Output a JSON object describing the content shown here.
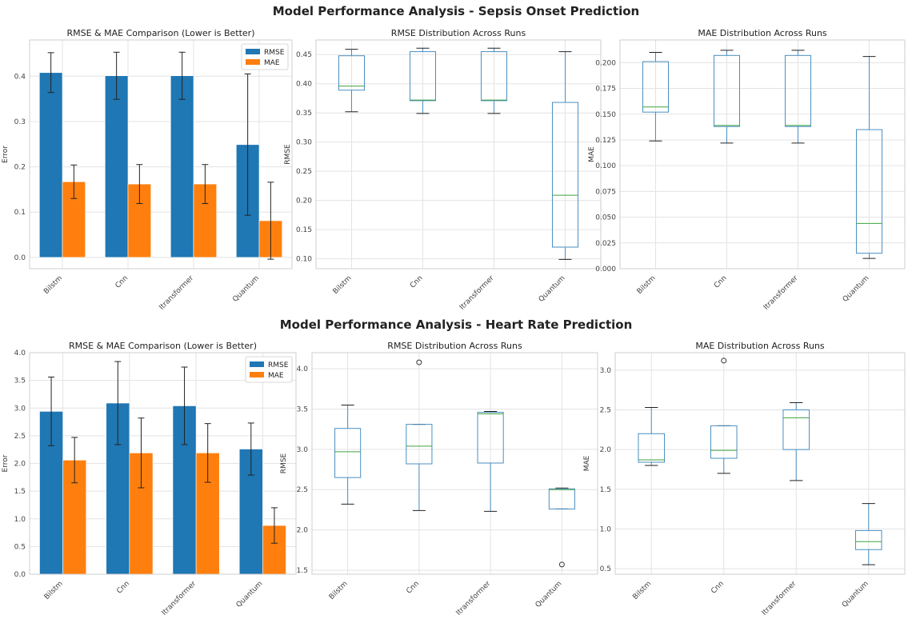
{
  "figure_titles": [
    "Model Performance Analysis - Sepsis Onset Prediction",
    "Model Performance Analysis - Heart Rate Prediction"
  ],
  "colors": {
    "rmse": "#1f77b4",
    "mae": "#ff7f0e",
    "box": "#4a8fc2",
    "median": "#3fa33f",
    "whisker": "#222222"
  },
  "chart_data": [
    {
      "type": "bar",
      "title": "RMSE & MAE Comparison (Lower is Better)",
      "ylabel": "Error",
      "categories": [
        "Bilstm",
        "Cnn",
        "Itransformer",
        "Quantum"
      ],
      "ylim": [
        -0.025,
        0.48
      ],
      "yticks": [
        0.0,
        0.1,
        0.2,
        0.3,
        0.4
      ],
      "yticklabels": [
        "0.0",
        "0.1",
        "0.2",
        "0.3",
        "0.4"
      ],
      "legend": "top-right",
      "grid": true,
      "series": [
        {
          "name": "RMSE",
          "color": "#1f77b4",
          "values": [
            0.408,
            0.401,
            0.401,
            0.249
          ],
          "err": [
            0.044,
            0.052,
            0.052,
            0.156
          ]
        },
        {
          "name": "MAE",
          "color": "#ff7f0e",
          "values": [
            0.167,
            0.162,
            0.162,
            0.081
          ],
          "err": [
            0.037,
            0.043,
            0.043,
            0.085
          ]
        }
      ]
    },
    {
      "type": "box",
      "title": "RMSE Distribution Across Runs",
      "ylabel": "RMSE",
      "categories": [
        "Bilstm",
        "Cnn",
        "Itransformer",
        "Quantum"
      ],
      "ylim": [
        0.083,
        0.475
      ],
      "yticks": [
        0.1,
        0.15,
        0.2,
        0.25,
        0.3,
        0.35,
        0.4,
        0.45
      ],
      "yticklabels": [
        "0.10",
        "0.15",
        "0.20",
        "0.25",
        "0.30",
        "0.35",
        "0.40",
        "0.45"
      ],
      "grid": true,
      "boxes": [
        {
          "min": 0.352,
          "q1": 0.389,
          "median": 0.396,
          "q3": 0.448,
          "max": 0.459,
          "outliers": []
        },
        {
          "min": 0.349,
          "q1": 0.371,
          "median": 0.372,
          "q3": 0.455,
          "max": 0.461,
          "outliers": []
        },
        {
          "min": 0.349,
          "q1": 0.371,
          "median": 0.372,
          "q3": 0.455,
          "max": 0.461,
          "outliers": []
        },
        {
          "min": 0.099,
          "q1": 0.12,
          "median": 0.209,
          "q3": 0.368,
          "max": 0.455,
          "outliers": []
        }
      ]
    },
    {
      "type": "box",
      "title": "MAE Distribution Across Runs",
      "ylabel": "MAE",
      "categories": [
        "Bilstm",
        "Cnn",
        "Itransformer",
        "Quantum"
      ],
      "ylim": [
        0.0,
        0.222
      ],
      "yticks": [
        0.0,
        0.025,
        0.05,
        0.075,
        0.1,
        0.125,
        0.15,
        0.175,
        0.2
      ],
      "yticklabels": [
        "0.000",
        "0.025",
        "0.050",
        "0.075",
        "0.100",
        "0.125",
        "0.150",
        "0.175",
        "0.200"
      ],
      "grid": true,
      "boxes": [
        {
          "min": 0.124,
          "q1": 0.152,
          "median": 0.157,
          "q3": 0.201,
          "max": 0.21,
          "outliers": []
        },
        {
          "min": 0.122,
          "q1": 0.138,
          "median": 0.139,
          "q3": 0.207,
          "max": 0.212,
          "outliers": []
        },
        {
          "min": 0.122,
          "q1": 0.138,
          "median": 0.139,
          "q3": 0.207,
          "max": 0.212,
          "outliers": []
        },
        {
          "min": 0.01,
          "q1": 0.015,
          "median": 0.044,
          "q3": 0.135,
          "max": 0.206,
          "outliers": []
        }
      ]
    },
    {
      "type": "bar",
      "title": "RMSE & MAE Comparison (Lower is Better)",
      "ylabel": "Error",
      "categories": [
        "Bilstm",
        "Cnn",
        "Itransformer",
        "Quantum"
      ],
      "ylim": [
        0.0,
        4.0
      ],
      "yticks": [
        0.0,
        0.5,
        1.0,
        1.5,
        2.0,
        2.5,
        3.0,
        3.5,
        4.0
      ],
      "yticklabels": [
        "0.0",
        "0.5",
        "1.0",
        "1.5",
        "2.0",
        "2.5",
        "3.0",
        "3.5",
        "4.0"
      ],
      "legend": "top-right",
      "grid": true,
      "series": [
        {
          "name": "RMSE",
          "color": "#1f77b4",
          "values": [
            2.94,
            3.09,
            3.04,
            2.26
          ],
          "err": [
            0.62,
            0.75,
            0.7,
            0.47
          ]
        },
        {
          "name": "MAE",
          "color": "#ff7f0e",
          "values": [
            2.06,
            2.19,
            2.19,
            0.88
          ],
          "err": [
            0.41,
            0.63,
            0.53,
            0.32
          ]
        }
      ]
    },
    {
      "type": "box",
      "title": "RMSE Distribution Across Runs",
      "ylabel": "RMSE",
      "categories": [
        "Bilstm",
        "Cnn",
        "Itransformer",
        "Quantum"
      ],
      "ylim": [
        1.45,
        4.2
      ],
      "yticks": [
        1.5,
        2.0,
        2.5,
        3.0,
        3.5,
        4.0
      ],
      "yticklabels": [
        "1.5",
        "2.0",
        "2.5",
        "3.0",
        "3.5",
        "4.0"
      ],
      "grid": true,
      "boxes": [
        {
          "min": 2.32,
          "q1": 2.65,
          "median": 2.97,
          "q3": 3.26,
          "max": 3.55,
          "outliers": []
        },
        {
          "min": 2.24,
          "q1": 2.82,
          "median": 3.04,
          "q3": 3.31,
          "max": 3.31,
          "outliers": [
            4.08
          ]
        },
        {
          "min": 2.23,
          "q1": 2.83,
          "median": 3.44,
          "q3": 3.46,
          "max": 3.47,
          "outliers": []
        },
        {
          "min": 2.26,
          "q1": 2.26,
          "median": 2.5,
          "q3": 2.51,
          "max": 2.52,
          "outliers": [
            1.57
          ]
        }
      ]
    },
    {
      "type": "box",
      "title": "MAE Distribution Across Runs",
      "ylabel": "MAE",
      "categories": [
        "Bilstm",
        "Cnn",
        "Itransformer",
        "Quantum"
      ],
      "ylim": [
        0.43,
        3.22
      ],
      "yticks": [
        0.5,
        1.0,
        1.5,
        2.0,
        2.5,
        3.0
      ],
      "yticklabels": [
        "0.5",
        "1.0",
        "1.5",
        "2.0",
        "2.5",
        "3.0"
      ],
      "grid": true,
      "boxes": [
        {
          "min": 1.8,
          "q1": 1.84,
          "median": 1.87,
          "q3": 2.2,
          "max": 2.53,
          "outliers": []
        },
        {
          "min": 1.7,
          "q1": 1.89,
          "median": 1.99,
          "q3": 2.3,
          "max": 2.3,
          "outliers": [
            3.12
          ]
        },
        {
          "min": 1.61,
          "q1": 2.0,
          "median": 2.4,
          "q3": 2.5,
          "max": 2.59,
          "outliers": []
        },
        {
          "min": 0.55,
          "q1": 0.74,
          "median": 0.84,
          "q3": 0.98,
          "max": 1.32,
          "outliers": []
        }
      ]
    }
  ]
}
